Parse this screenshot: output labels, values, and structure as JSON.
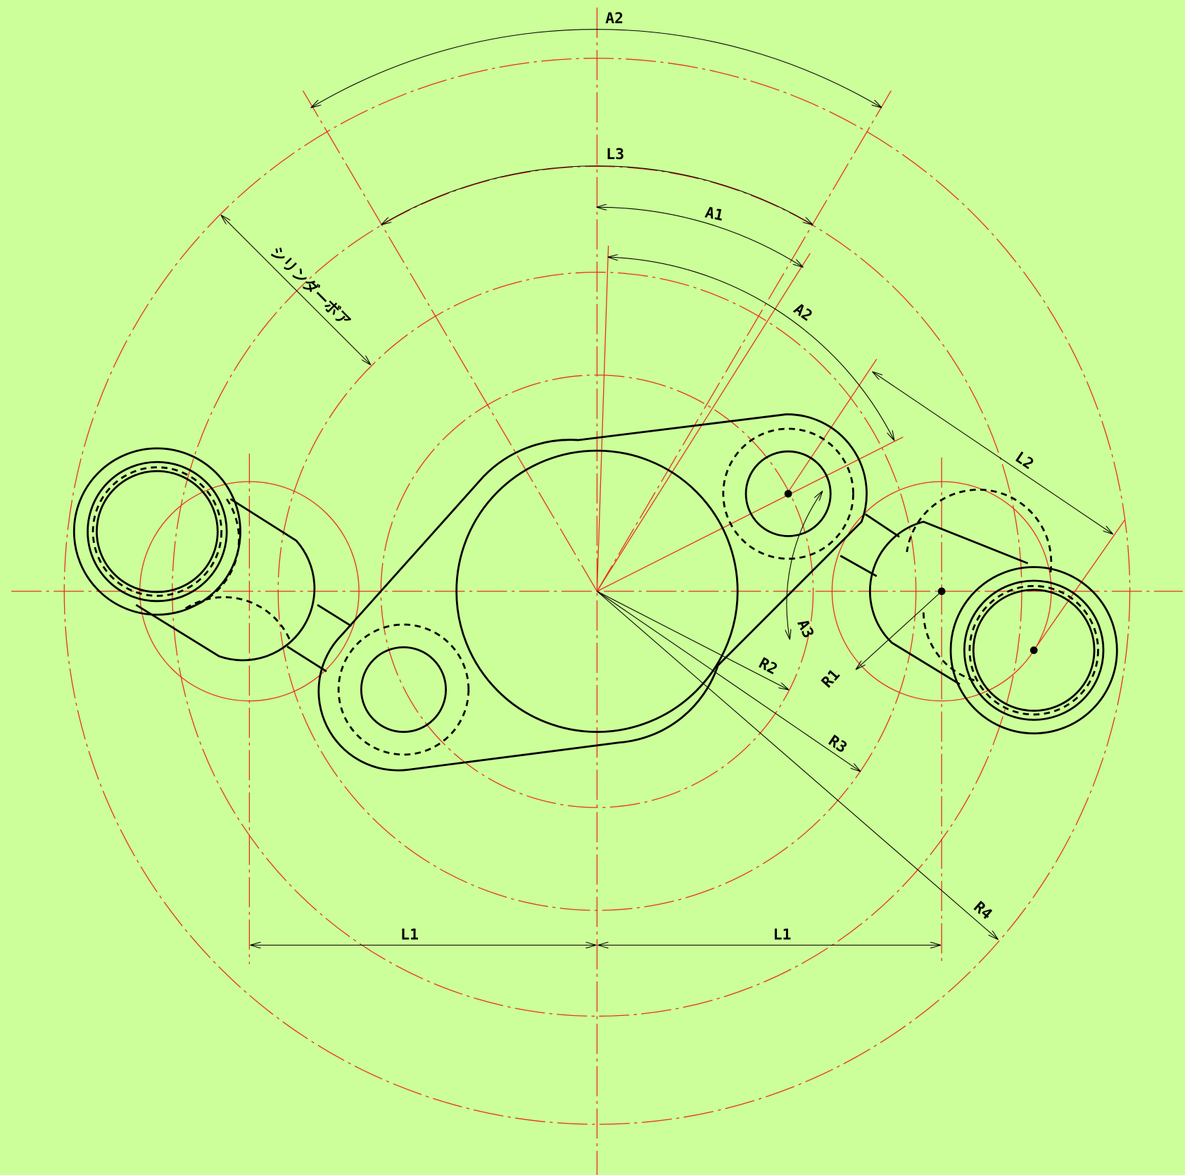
{
  "dimensions": {
    "labels": [
      "A2",
      "L3",
      "A1",
      "A2",
      "シリンダーボア",
      "L2",
      "A3",
      "R2",
      "R1",
      "R3",
      "R4",
      "L1",
      "L1"
    ]
  }
}
